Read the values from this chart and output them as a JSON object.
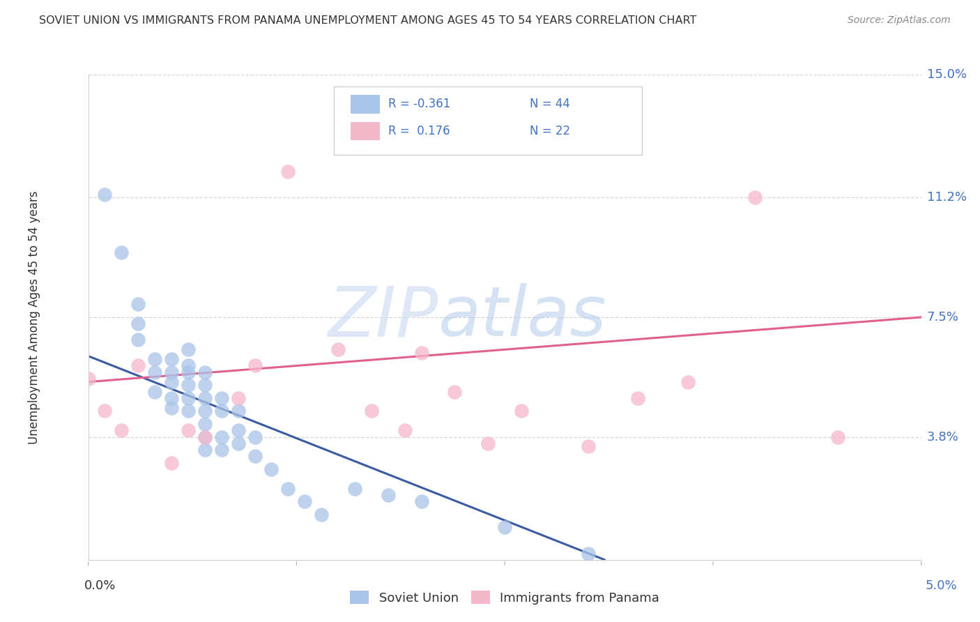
{
  "title": "SOVIET UNION VS IMMIGRANTS FROM PANAMA UNEMPLOYMENT AMONG AGES 45 TO 54 YEARS CORRELATION CHART",
  "source": "Source: ZipAtlas.com",
  "ylabel": "Unemployment Among Ages 45 to 54 years",
  "y_ticks": [
    0.0,
    0.038,
    0.075,
    0.112,
    0.15
  ],
  "y_tick_labels": [
    "",
    "3.8%",
    "7.5%",
    "11.2%",
    "15.0%"
  ],
  "x_tick_labels_left": "0.0%",
  "x_tick_labels_right": "5.0%",
  "x_range": [
    0.0,
    0.05
  ],
  "y_range": [
    0.0,
    0.15
  ],
  "blue_color": "#a8c4e8",
  "pink_color": "#f5b8cb",
  "blue_line_color": "#3a5ba0",
  "pink_line_color": "#e06090",
  "watermark_zip": "ZIP",
  "watermark_atlas": "atlas",
  "soviet_x": [
    0.001,
    0.002,
    0.003,
    0.003,
    0.003,
    0.004,
    0.004,
    0.004,
    0.005,
    0.005,
    0.005,
    0.005,
    0.005,
    0.006,
    0.006,
    0.006,
    0.006,
    0.006,
    0.006,
    0.007,
    0.007,
    0.007,
    0.007,
    0.007,
    0.007,
    0.007,
    0.008,
    0.008,
    0.008,
    0.008,
    0.009,
    0.009,
    0.009,
    0.01,
    0.01,
    0.011,
    0.012,
    0.013,
    0.014,
    0.016,
    0.018,
    0.02,
    0.025,
    0.03
  ],
  "soviet_y": [
    0.113,
    0.095,
    0.079,
    0.073,
    0.068,
    0.062,
    0.058,
    0.052,
    0.062,
    0.058,
    0.055,
    0.05,
    0.047,
    0.065,
    0.06,
    0.058,
    0.054,
    0.05,
    0.046,
    0.058,
    0.054,
    0.05,
    0.046,
    0.042,
    0.038,
    0.034,
    0.05,
    0.046,
    0.038,
    0.034,
    0.046,
    0.04,
    0.036,
    0.038,
    0.032,
    0.028,
    0.022,
    0.018,
    0.014,
    0.022,
    0.02,
    0.018,
    0.01,
    0.002
  ],
  "panama_x": [
    0.0,
    0.001,
    0.002,
    0.003,
    0.005,
    0.006,
    0.007,
    0.009,
    0.01,
    0.012,
    0.015,
    0.017,
    0.019,
    0.02,
    0.022,
    0.024,
    0.026,
    0.03,
    0.033,
    0.036,
    0.04,
    0.045
  ],
  "panama_y": [
    0.056,
    0.046,
    0.04,
    0.06,
    0.03,
    0.04,
    0.038,
    0.05,
    0.06,
    0.12,
    0.065,
    0.046,
    0.04,
    0.064,
    0.052,
    0.036,
    0.046,
    0.035,
    0.05,
    0.055,
    0.112,
    0.038
  ],
  "blue_trend_x": [
    0.0,
    0.031
  ],
  "blue_trend_y": [
    0.063,
    0.0
  ],
  "pink_trend_x": [
    0.0,
    0.05
  ],
  "pink_trend_y": [
    0.055,
    0.075
  ]
}
